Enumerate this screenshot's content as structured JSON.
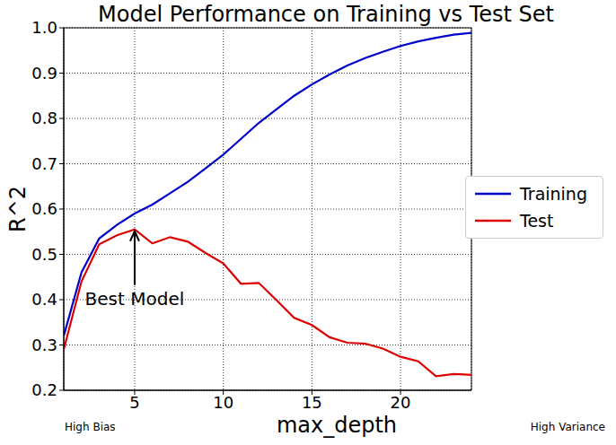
{
  "chart_data": {
    "type": "line",
    "title": "Model Performance on Training vs Test Set",
    "x_label": "max_depth",
    "y_label": "R^2",
    "x": [
      1,
      2,
      3,
      4,
      5,
      6,
      7,
      8,
      9,
      10,
      11,
      12,
      13,
      14,
      15,
      16,
      17,
      18,
      19,
      20,
      21,
      22,
      23,
      24
    ],
    "series": [
      {
        "name": "Training",
        "color": "#0000cc",
        "values": [
          0.32,
          0.46,
          0.535,
          0.565,
          0.59,
          0.61,
          0.635,
          0.66,
          0.69,
          0.72,
          0.755,
          0.79,
          0.82,
          0.85,
          0.875,
          0.897,
          0.917,
          0.933,
          0.947,
          0.96,
          0.97,
          0.978,
          0.985,
          0.989
        ]
      },
      {
        "name": "Test",
        "color": "#dd0000",
        "values": [
          0.29,
          0.44,
          0.522,
          0.542,
          0.555,
          0.524,
          0.538,
          0.528,
          0.503,
          0.48,
          0.435,
          0.437,
          0.399,
          0.36,
          0.344,
          0.317,
          0.305,
          0.303,
          0.292,
          0.274,
          0.264,
          0.231,
          0.236,
          0.234
        ]
      }
    ],
    "xlim": [
      1,
      24
    ],
    "xticks": [
      5,
      10,
      15,
      20
    ],
    "ylim": [
      0.2,
      1
    ],
    "yticks": [
      0.2,
      0.3,
      0.4,
      0.5,
      0.6,
      0.7,
      0.8,
      0.9,
      {
        "value": 1,
        "label": "1.0"
      }
    ],
    "grid": true,
    "legend": "right",
    "annotations": [
      {
        "text": "Best Model",
        "x": 5,
        "y": 0.555
      }
    ],
    "x_axis_notes": [
      "High Bias",
      "High Variance"
    ]
  }
}
